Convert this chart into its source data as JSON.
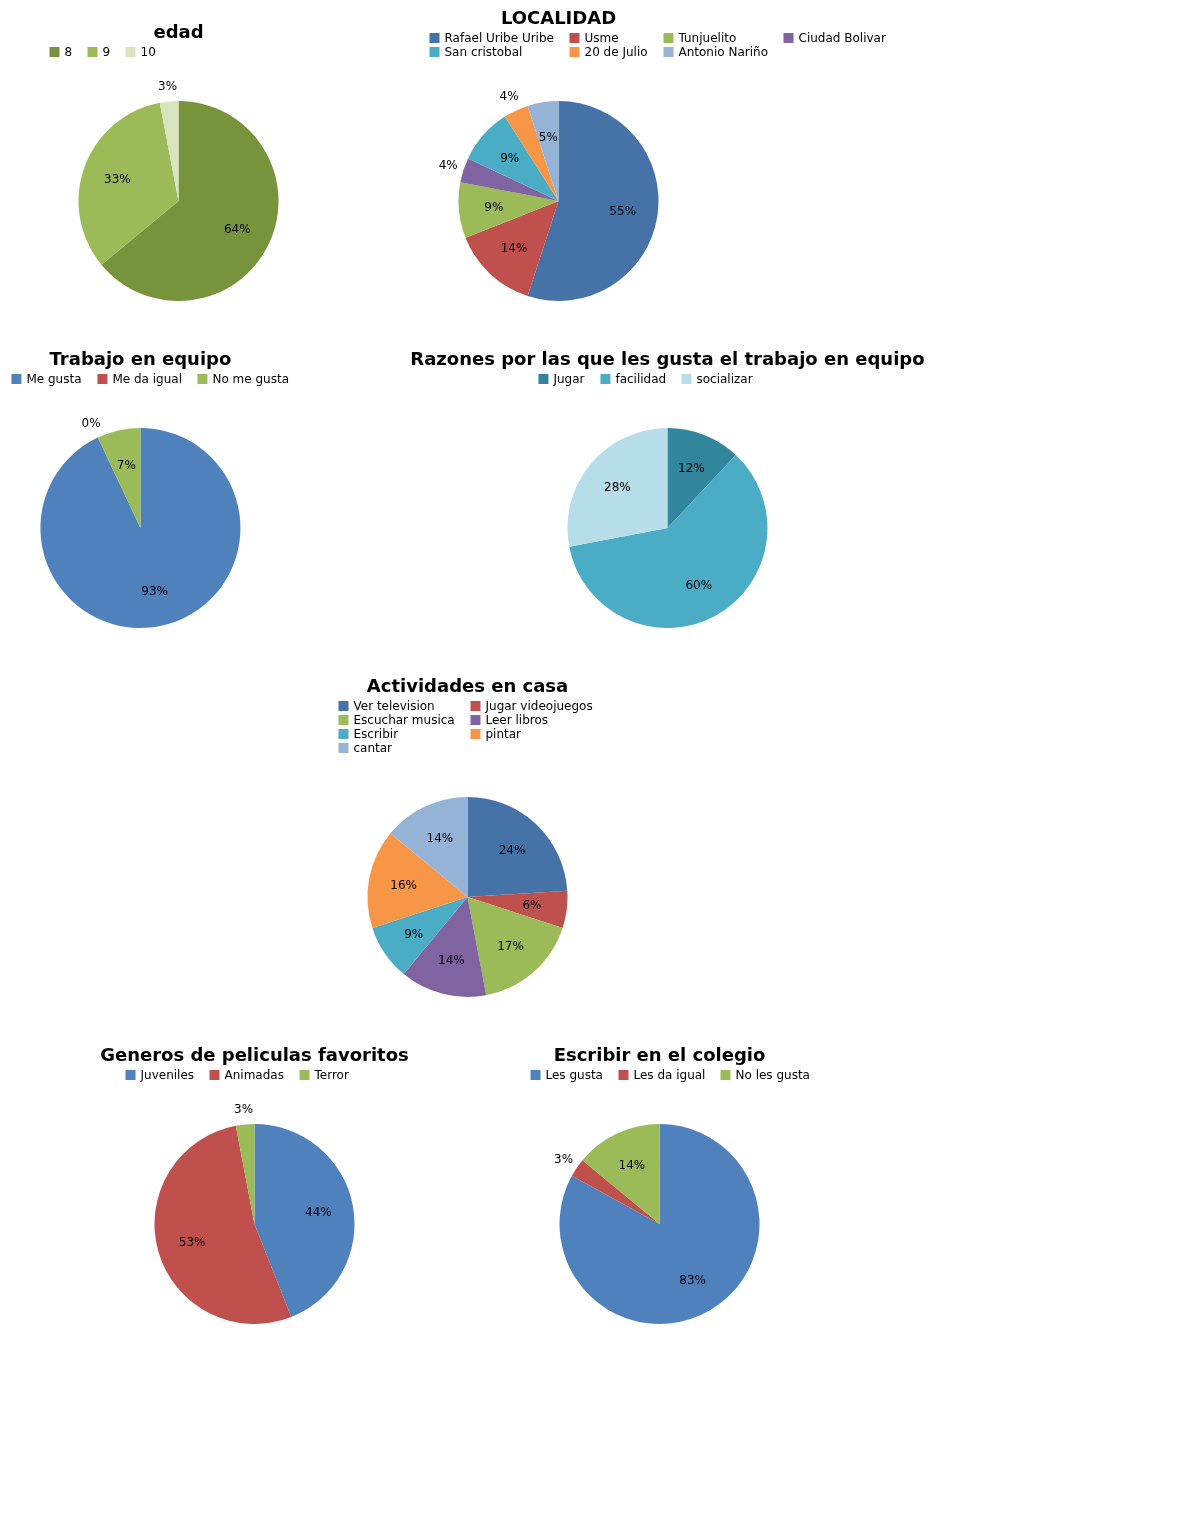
{
  "chart_data": [
    {
      "type": "pie",
      "title": "edad",
      "legend": "top",
      "categories": [
        "8",
        "9",
        "10"
      ],
      "values": [
        64,
        33,
        3
      ],
      "colors": [
        "#77933c",
        "#9bbb59",
        "#d7e4bd"
      ],
      "value_labels": [
        "64%",
        "33%",
        "3%"
      ]
    },
    {
      "type": "pie",
      "title": "LOCALIDAD",
      "legend": "top",
      "categories": [
        "Rafael Uribe Uribe",
        "Usme",
        "Tunjuelito",
        "Ciudad Bolivar",
        "San cristobal",
        "20 de Julio",
        "Antonio Nariño"
      ],
      "values": [
        55,
        14,
        9,
        4,
        9,
        4,
        5
      ],
      "colors": [
        "#4572a7",
        "#c0504d",
        "#9bbb59",
        "#8064a2",
        "#4bacc6",
        "#f79646",
        "#95b3d7"
      ],
      "value_labels": [
        "55%",
        "14%",
        "9%",
        "4%",
        "9%",
        "4%",
        "5%"
      ]
    },
    {
      "type": "pie",
      "title": "Trabajo en equipo",
      "legend": "top",
      "categories": [
        "Me gusta",
        "Me da igual",
        "No me gusta"
      ],
      "values": [
        93,
        0,
        7
      ],
      "colors": [
        "#4f81bd",
        "#c0504d",
        "#9bbb59"
      ],
      "value_labels": [
        "93%",
        "0%",
        "7%"
      ]
    },
    {
      "type": "pie",
      "title": "Razones por las que les gusta el trabajo en equipo",
      "legend": "top",
      "categories": [
        "Jugar",
        "facilidad",
        "socializar"
      ],
      "values": [
        12,
        60,
        28
      ],
      "colors": [
        "#31859c",
        "#4bacc6",
        "#b7dde8"
      ],
      "value_labels": [
        "12%",
        "60%",
        "28%"
      ]
    },
    {
      "type": "pie",
      "title": "Actividades en casa",
      "legend": "top",
      "categories": [
        "Ver television",
        "Jugar videojuegos",
        "Escuchar musica",
        "Leer libros",
        "Escribir",
        "pintar",
        "cantar"
      ],
      "values": [
        24,
        6,
        17,
        14,
        9,
        16,
        14
      ],
      "colors": [
        "#4572a7",
        "#c0504d",
        "#9bbb59",
        "#8064a2",
        "#4bacc6",
        "#f79646",
        "#95b3d7"
      ],
      "value_labels": [
        "24%",
        "6%",
        "17%",
        "14%",
        "9%",
        "16%",
        "14%"
      ]
    },
    {
      "type": "pie",
      "title": "Generos de peliculas favoritos",
      "legend": "top",
      "categories": [
        "Juveniles",
        "Animadas",
        "Terror"
      ],
      "values": [
        44,
        53,
        3
      ],
      "colors": [
        "#4f81bd",
        "#c0504d",
        "#9bbb59"
      ],
      "value_labels": [
        "44%",
        "53%",
        "3%"
      ]
    },
    {
      "type": "pie",
      "title": "Escribir en el colegio",
      "legend": "top",
      "categories": [
        "Les gusta",
        "Les da igual",
        "No les gusta"
      ],
      "values": [
        83,
        3,
        14
      ],
      "colors": [
        "#4f81bd",
        "#c0504d",
        "#9bbb59"
      ],
      "value_labels": [
        "83%",
        "3%",
        "14%"
      ]
    }
  ]
}
